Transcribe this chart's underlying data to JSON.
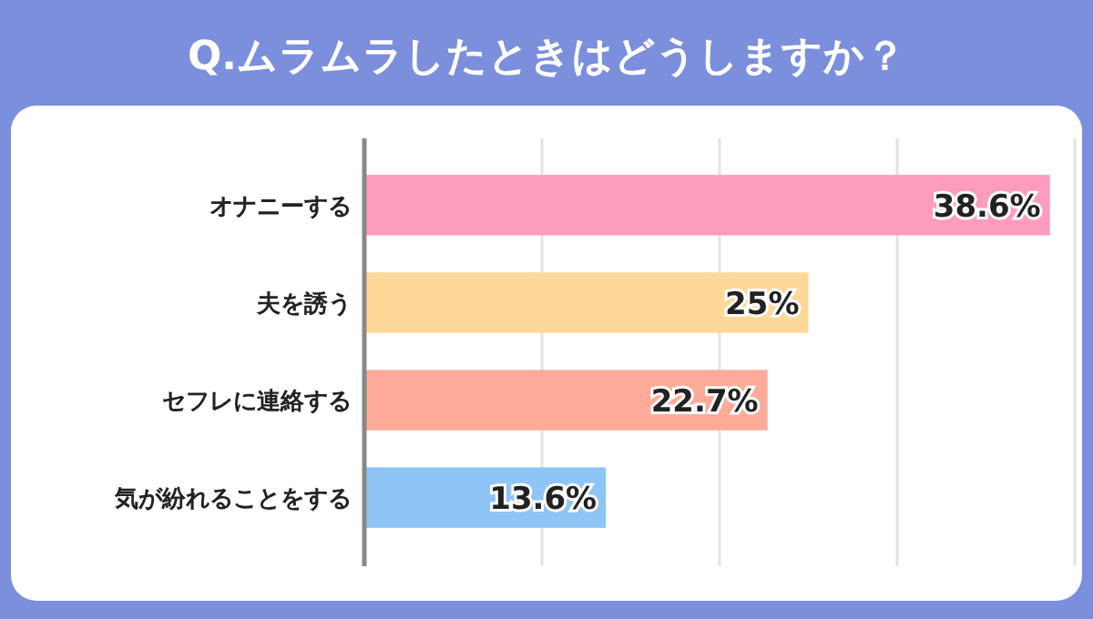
{
  "chart_data": {
    "type": "bar",
    "orientation": "horizontal",
    "title": "Q.ムラムラしたときはどうしますか？",
    "categories": [
      "オナニーする",
      "夫を誘う",
      "セフレに連絡する",
      "気が紛れることをする"
    ],
    "values": [
      38.6,
      25,
      22.7,
      13.6
    ],
    "colors": [
      "#fe9cbe",
      "#fed898",
      "#fdab98",
      "#8ec5f4"
    ],
    "value_labels": [
      "38.6%",
      "25%",
      "22.7%",
      "13.6%"
    ],
    "xlim": [
      0,
      40
    ],
    "xticks": [
      {
        "value": 0,
        "label": null
      },
      {
        "value": 10,
        "label": null
      },
      {
        "value": 20,
        "label": null
      },
      {
        "value": 30,
        "label": null
      },
      {
        "value": 40,
        "label": null
      }
    ],
    "grid": "x",
    "tick_labels": "y"
  }
}
